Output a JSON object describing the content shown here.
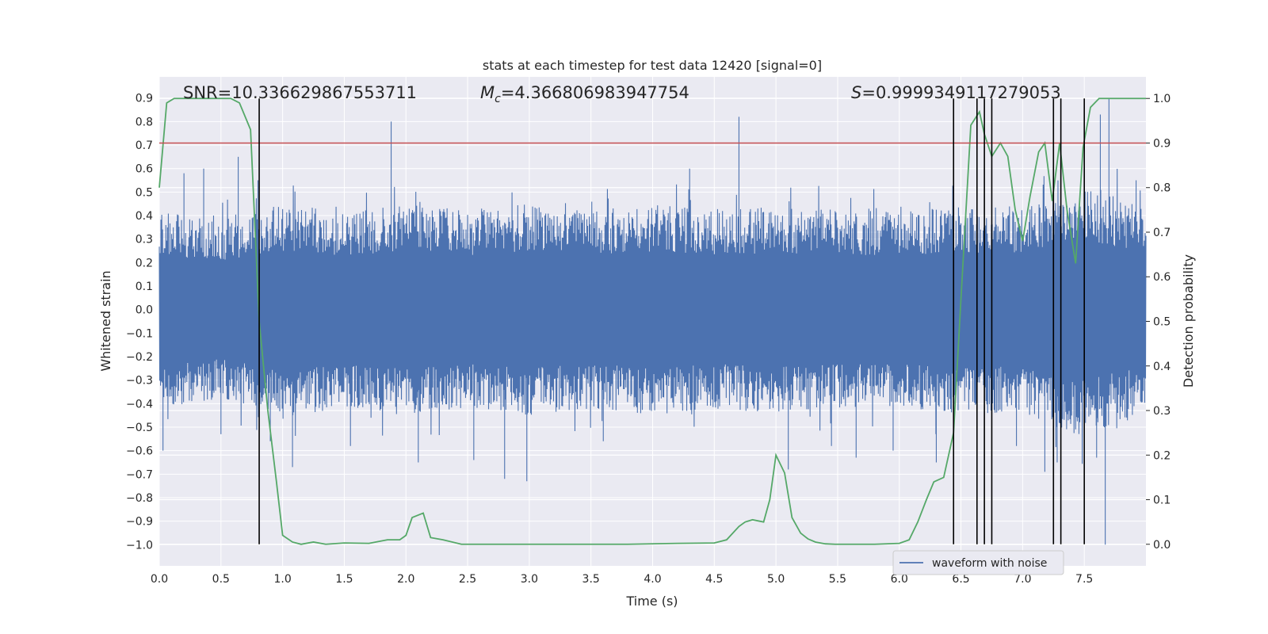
{
  "chart_data": {
    "type": "line",
    "title": "stats at each timestep for test data 12420 [signal=0]",
    "xlabel": "Time (s)",
    "ylabel": "Whitened strain",
    "y2label": "Detection probability",
    "xlim": [
      0.0,
      8.0
    ],
    "ylim": [
      -1.09,
      0.99
    ],
    "y2lim": [
      -0.0484,
      1.0484
    ],
    "xticks": [
      "0.0",
      "0.5",
      "1.0",
      "1.5",
      "2.0",
      "2.5",
      "3.0",
      "3.5",
      "4.0",
      "4.5",
      "5.0",
      "5.5",
      "6.0",
      "6.5",
      "7.0",
      "7.5"
    ],
    "yticks": [
      "0.9",
      "0.8",
      "0.7",
      "0.6",
      "0.5",
      "0.4",
      "0.3",
      "0.2",
      "0.1",
      "0.0",
      "-0.1",
      "-0.2",
      "-0.3",
      "-0.4",
      "-0.5",
      "-0.6",
      "-0.7",
      "-0.8",
      "-0.9",
      "-1.0"
    ],
    "y2ticks": [
      "1.0",
      "0.9",
      "0.8",
      "0.7",
      "0.6",
      "0.5",
      "0.4",
      "0.3",
      "0.2",
      "0.1",
      "0.0"
    ],
    "annotations": {
      "snr": "SNR=10.336629867553711",
      "mc_symbol": "M",
      "mc_sub": "c",
      "mc_value": "=4.366806983947754",
      "s_symbol": "S",
      "s_value": "=0.9999349117279053"
    },
    "threshold": {
      "y2": 0.9,
      "color": "#c44e52"
    },
    "detection_times": [
      0.81,
      6.44,
      6.63,
      6.69,
      6.75,
      7.25,
      7.31,
      7.5
    ],
    "waveform": {
      "name": "waveform with noise",
      "color": "#4c72b0",
      "envelope_upper": [
        [
          0.0,
          0.42
        ],
        [
          0.5,
          0.38
        ],
        [
          1.0,
          0.45
        ],
        [
          1.5,
          0.42
        ],
        [
          2.0,
          0.45
        ],
        [
          2.5,
          0.42
        ],
        [
          3.0,
          0.45
        ],
        [
          3.5,
          0.42
        ],
        [
          4.0,
          0.45
        ],
        [
          4.5,
          0.42
        ],
        [
          5.0,
          0.44
        ],
        [
          5.5,
          0.42
        ],
        [
          6.0,
          0.42
        ],
        [
          6.5,
          0.44
        ],
        [
          7.0,
          0.44
        ],
        [
          7.5,
          0.55
        ],
        [
          8.0,
          0.42
        ]
      ],
      "envelope_lower": [
        [
          0.0,
          -0.42
        ],
        [
          0.5,
          -0.38
        ],
        [
          1.0,
          -0.46
        ],
        [
          1.5,
          -0.42
        ],
        [
          2.0,
          -0.45
        ],
        [
          2.5,
          -0.42
        ],
        [
          3.0,
          -0.45
        ],
        [
          3.5,
          -0.42
        ],
        [
          4.0,
          -0.45
        ],
        [
          4.5,
          -0.42
        ],
        [
          5.0,
          -0.44
        ],
        [
          5.5,
          -0.42
        ],
        [
          6.0,
          -0.42
        ],
        [
          6.5,
          -0.44
        ],
        [
          7.0,
          -0.44
        ],
        [
          7.5,
          -0.55
        ],
        [
          8.0,
          -0.42
        ]
      ],
      "peaks": [
        [
          0.03,
          -0.6
        ],
        [
          0.2,
          0.58
        ],
        [
          0.36,
          0.6
        ],
        [
          0.5,
          -0.53
        ],
        [
          0.64,
          0.65
        ],
        [
          0.8,
          0.55
        ],
        [
          0.9,
          -0.56
        ],
        [
          1.08,
          -0.67
        ],
        [
          1.55,
          -0.58
        ],
        [
          1.88,
          0.8
        ],
        [
          2.1,
          -0.65
        ],
        [
          2.55,
          -0.64
        ],
        [
          2.8,
          -0.72
        ],
        [
          2.98,
          -0.73
        ],
        [
          3.6,
          -0.56
        ],
        [
          4.3,
          0.6
        ],
        [
          4.7,
          0.82
        ],
        [
          5.1,
          -0.68
        ],
        [
          5.45,
          -0.58
        ],
        [
          5.65,
          -0.63
        ],
        [
          5.95,
          -0.6
        ],
        [
          6.3,
          -0.65
        ],
        [
          6.95,
          -0.58
        ],
        [
          7.18,
          -0.69
        ],
        [
          7.28,
          -0.65
        ],
        [
          7.5,
          0.62
        ],
        [
          7.6,
          -0.63
        ],
        [
          7.63,
          0.83
        ],
        [
          7.67,
          -1.0
        ],
        [
          7.7,
          0.9
        ],
        [
          7.92,
          0.55
        ]
      ]
    },
    "probability": {
      "name": "detection probability",
      "color": "#55a868",
      "x": [
        0.0,
        0.06,
        0.12,
        0.2,
        0.3,
        0.4,
        0.5,
        0.58,
        0.65,
        0.74,
        0.81,
        0.88,
        0.95,
        1.0,
        1.08,
        1.15,
        1.25,
        1.35,
        1.5,
        1.7,
        1.85,
        1.95,
        2.0,
        2.05,
        2.14,
        2.2,
        2.3,
        2.45,
        2.55,
        2.8,
        3.2,
        3.5,
        3.8,
        4.2,
        4.5,
        4.6,
        4.7,
        4.75,
        4.81,
        4.9,
        4.95,
        5.0,
        5.07,
        5.13,
        5.2,
        5.26,
        5.32,
        5.4,
        5.48,
        5.58,
        5.8,
        6.0,
        6.08,
        6.15,
        6.22,
        6.28,
        6.36,
        6.44,
        6.5,
        6.58,
        6.65,
        6.69,
        6.75,
        6.82,
        6.88,
        6.94,
        7.0,
        7.06,
        7.13,
        7.18,
        7.24,
        7.3,
        7.36,
        7.43,
        7.49,
        7.55,
        7.62,
        7.7,
        8.0
      ],
      "y": [
        0.8,
        0.99,
        1.0,
        1.0,
        1.0,
        1.0,
        1.0,
        1.0,
        0.99,
        0.93,
        0.5,
        0.3,
        0.14,
        0.02,
        0.005,
        0.0,
        0.005,
        0.0,
        0.003,
        0.002,
        0.01,
        0.01,
        0.02,
        0.06,
        0.07,
        0.015,
        0.01,
        0.0,
        0.0,
        0.0,
        0.0,
        0.0,
        0.0,
        0.002,
        0.003,
        0.01,
        0.04,
        0.05,
        0.055,
        0.05,
        0.1,
        0.2,
        0.16,
        0.06,
        0.025,
        0.012,
        0.005,
        0.001,
        0.0,
        0.0,
        0.0,
        0.002,
        0.01,
        0.05,
        0.1,
        0.14,
        0.15,
        0.25,
        0.55,
        0.94,
        0.97,
        0.92,
        0.87,
        0.9,
        0.87,
        0.75,
        0.68,
        0.78,
        0.88,
        0.9,
        0.77,
        0.9,
        0.75,
        0.63,
        0.89,
        0.98,
        1.0,
        1.0,
        1.0
      ]
    }
  }
}
